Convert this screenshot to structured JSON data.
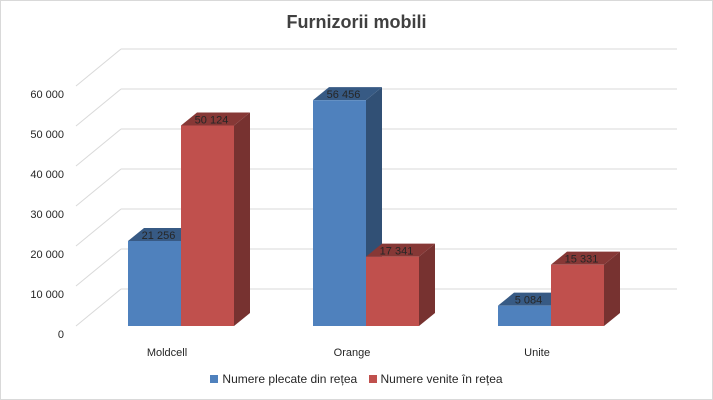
{
  "chart_data": {
    "type": "bar",
    "title": "Furnizorii mobili",
    "categories": [
      "Moldcell",
      "Orange",
      "Unite"
    ],
    "series": [
      {
        "name": "Numere plecate din rețea",
        "values": [
          21256,
          56456,
          5084
        ],
        "labels": [
          "21 256",
          "56 456",
          "5 084"
        ],
        "color": "#4F81BD"
      },
      {
        "name": "Numere venite în rețea",
        "values": [
          50124,
          17341,
          15331
        ],
        "labels": [
          "50 124",
          "17 341",
          "15 331"
        ],
        "color": "#C0504D"
      }
    ],
    "yticks": [
      "0",
      "10 000",
      "20 000",
      "30 000",
      "40 000",
      "50 000",
      "60 000"
    ],
    "ylim": [
      0,
      60000
    ],
    "grid": true,
    "legend_position": "bottom",
    "style": "3d-clustered-column"
  }
}
